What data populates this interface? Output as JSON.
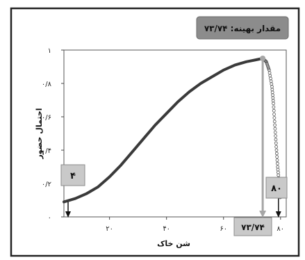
{
  "chart_data": {
    "type": "line",
    "xlabel": "شن خاک",
    "ylabel": "احتمال حضور",
    "xlim": [
      4,
      82
    ],
    "ylim": [
      0,
      1
    ],
    "x_ticks": [
      {
        "value": 20,
        "label": "۲۰"
      },
      {
        "value": 40,
        "label": "۴۰"
      },
      {
        "value": 60,
        "label": "۶۰"
      },
      {
        "value": 80,
        "label": "۸۰"
      }
    ],
    "y_ticks": [
      {
        "value": 0,
        "label": "۰"
      },
      {
        "value": 0.2,
        "label": "۰/۲"
      },
      {
        "value": 0.4,
        "label": "۰/۴"
      },
      {
        "value": 0.6,
        "label": "۰/۶"
      },
      {
        "value": 0.8,
        "label": "۰/۸"
      },
      {
        "value": 1,
        "label": "۱"
      }
    ],
    "grid": false,
    "series": [
      {
        "x": [
          4,
          8,
          12,
          16,
          20,
          24,
          28,
          32,
          36,
          40,
          44,
          48,
          52,
          56,
          60,
          64,
          68,
          71,
          73.74
        ],
        "y": [
          0.09,
          0.11,
          0.14,
          0.18,
          0.24,
          0.31,
          0.39,
          0.47,
          0.55,
          0.62,
          0.69,
          0.75,
          0.8,
          0.84,
          0.88,
          0.91,
          0.93,
          0.94,
          0.95
        ]
      },
      {
        "x": [
          73.74,
          75,
          76,
          77,
          77.5,
          78,
          78.5,
          79,
          79.5,
          80
        ],
        "y": [
          0.95,
          0.93,
          0.88,
          0.78,
          0.68,
          0.55,
          0.42,
          0.3,
          0.2,
          0.1
        ]
      }
    ],
    "optimum": {
      "x": 73.74,
      "label": "مقدار بهینه: ۷۳/۷۴"
    },
    "markers": [
      {
        "x": 4,
        "label": "۴"
      },
      {
        "x": 73.74,
        "label": "۷۳/۷۴"
      },
      {
        "x": 80,
        "label": "۸۰"
      }
    ]
  },
  "colors": {
    "curve": "#3a3a3a",
    "tail": "#555555",
    "optimum_line": "#a6a6a6",
    "box_fill": "#c9c9c9",
    "box_stroke": "#8a8a8a",
    "title_box": "#8c8c8c"
  }
}
